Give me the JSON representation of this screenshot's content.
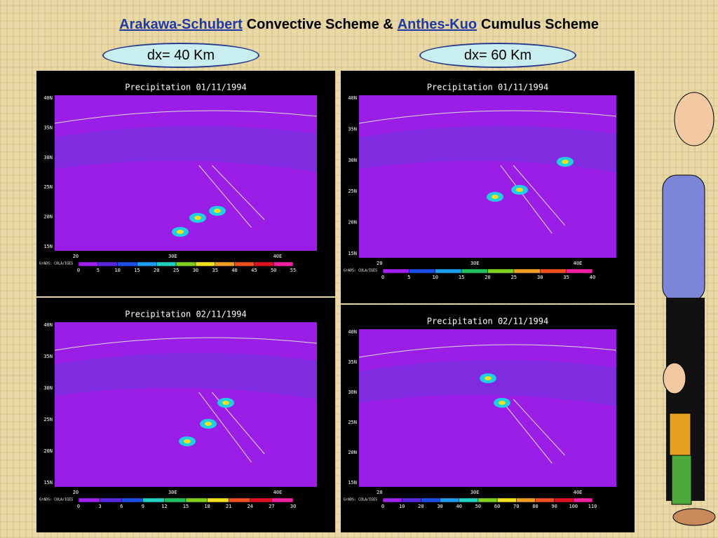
{
  "title": {
    "parts": [
      "Arakawa-Schubert",
      "Convective Scheme &",
      "Anthes-Kuo",
      "Cumulus Scheme"
    ]
  },
  "labels": [
    "dx= 40 Km",
    "dx= 60 Km"
  ],
  "panels": [
    {
      "title": "Precipitation 01/11/1994",
      "lat_labels": [
        "40N",
        "35N",
        "30N",
        "25N",
        "20N",
        "15N"
      ],
      "lon_labels": [
        "20",
        "30E",
        "40E"
      ],
      "credit": "GrADS: COLA/IGES",
      "colorbar": [
        0,
        5,
        10,
        15,
        20,
        25,
        30,
        35,
        40,
        45,
        50,
        55
      ]
    },
    {
      "title": "Precipitation 01/11/1994",
      "lat_labels": [
        "40N",
        "35N",
        "30N",
        "25N",
        "20N",
        "15N"
      ],
      "lon_labels": [
        "20",
        "30E",
        "40E"
      ],
      "credit": "GrADS: COLA/IGES",
      "colorbar": [
        0,
        5,
        10,
        15,
        20,
        25,
        30,
        35,
        40
      ]
    },
    {
      "title": "Precipitation 02/11/1994",
      "lat_labels": [
        "40N",
        "35N",
        "30N",
        "25N",
        "20N",
        "15N"
      ],
      "lon_labels": [
        "20",
        "30E",
        "40E"
      ],
      "credit": "GrADS: COLA/IGES",
      "colorbar": [
        0,
        3,
        6,
        9,
        12,
        15,
        18,
        21,
        24,
        27,
        30
      ]
    },
    {
      "title": "Precipitation 02/11/1994",
      "lat_labels": [
        "40N",
        "35N",
        "30N",
        "25N",
        "20N",
        "15N"
      ],
      "lon_labels": [
        "20",
        "30E",
        "40E"
      ],
      "credit": "GrADS: COLA/IGES",
      "colorbar": [
        0,
        10,
        20,
        30,
        40,
        50,
        60,
        70,
        80,
        90,
        100,
        110
      ]
    }
  ]
}
